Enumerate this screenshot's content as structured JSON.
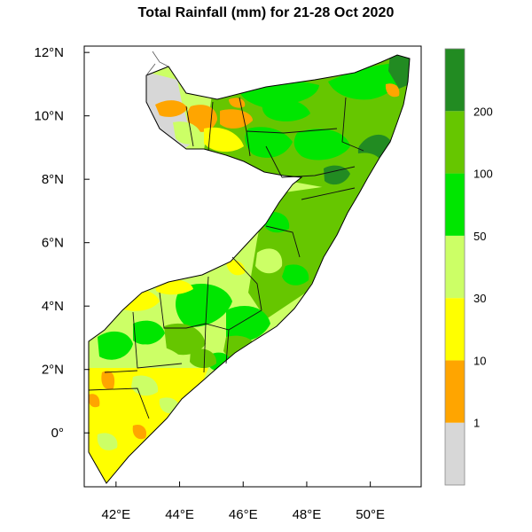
{
  "title": "Total Rainfall (mm) for 21-28 Oct 2020",
  "map": {
    "lon_range": [
      41.0,
      51.6
    ],
    "lat_range": [
      -1.7,
      12.2
    ],
    "x_ticks": [
      {
        "lon": 42,
        "label": "42°E"
      },
      {
        "lon": 44,
        "label": "44°E"
      },
      {
        "lon": 46,
        "label": "46°E"
      },
      {
        "lon": 48,
        "label": "48°E"
      },
      {
        "lon": 50,
        "label": "50°E"
      }
    ],
    "y_ticks": [
      {
        "lat": 12,
        "label": "12°N"
      },
      {
        "lat": 10,
        "label": "10°N"
      },
      {
        "lat": 8,
        "label": "8°N"
      },
      {
        "lat": 6,
        "label": "6°N"
      },
      {
        "lat": 4,
        "label": "4°N"
      },
      {
        "lat": 2,
        "label": "2°N"
      },
      {
        "lat": 0,
        "label": "0°"
      }
    ]
  },
  "legend": {
    "bins": [
      {
        "range": "<1",
        "color": "#d7d7d7"
      },
      {
        "range": "1-10",
        "color": "#ffa500"
      },
      {
        "range": "10-30",
        "color": "#ffff00"
      },
      {
        "range": "30-50",
        "color": "#ccff66"
      },
      {
        "range": "50-100",
        "color": "#00e600"
      },
      {
        "range": "100-200",
        "color": "#66c600"
      },
      {
        "range": ">200",
        "color": "#228b22"
      }
    ],
    "labels": [
      "1",
      "10",
      "30",
      "50",
      "100",
      "200"
    ]
  },
  "colors": {
    "gray": "#d7d7d7",
    "orange": "#ffa500",
    "yellow": "#ffff00",
    "lightgreen": "#ccff66",
    "brightgreen": "#00e600",
    "midgreen": "#66c600",
    "darkgreen": "#228b22"
  }
}
